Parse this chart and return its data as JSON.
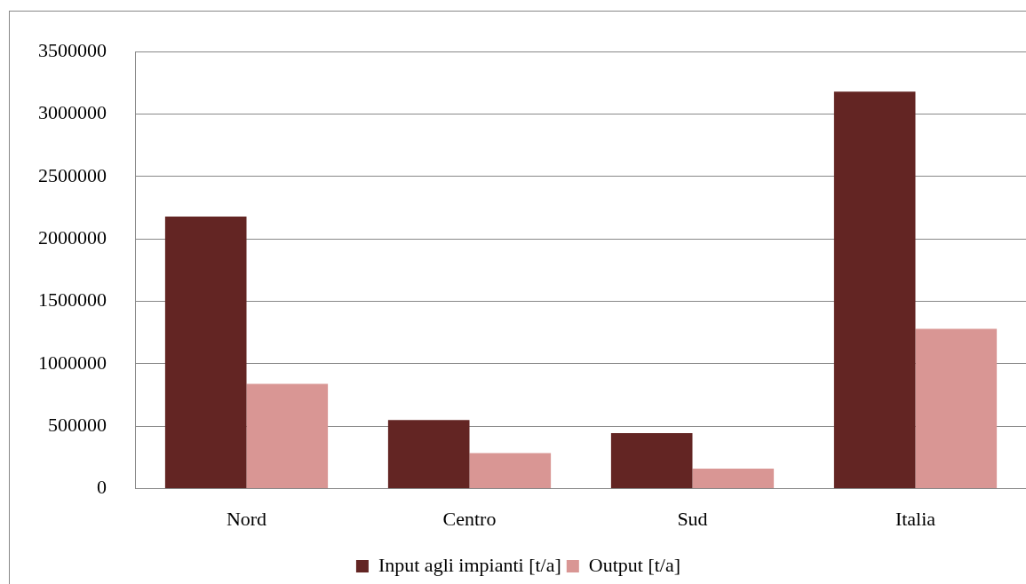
{
  "chart_data": {
    "type": "bar",
    "categories": [
      "Nord",
      "Centro",
      "Sud",
      "Italia"
    ],
    "series": [
      {
        "name": "Input agli impianti [t/a]",
        "color": "#632523",
        "values": [
          2180000,
          550000,
          445000,
          3180000
        ]
      },
      {
        "name": "Output [t/a]",
        "color": "#d99694",
        "values": [
          840000,
          285000,
          160000,
          1280000
        ]
      }
    ],
    "ylim": [
      0,
      3500000
    ],
    "yticks": [
      0,
      500000,
      1000000,
      1500000,
      2000000,
      2500000,
      3000000,
      3500000
    ],
    "grid": "y",
    "legend": "bottom"
  }
}
